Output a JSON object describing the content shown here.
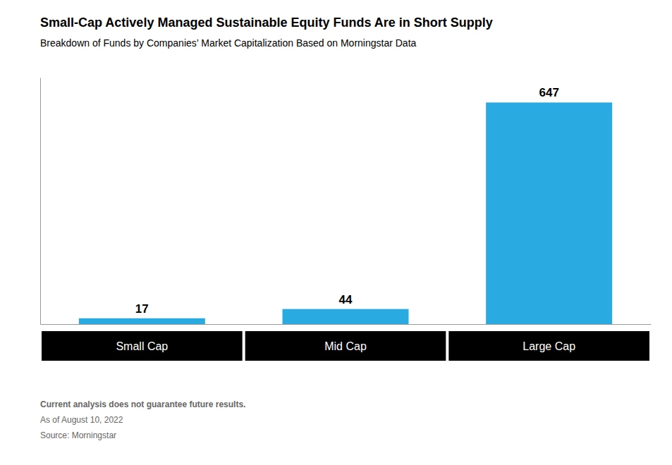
{
  "chart_data": {
    "type": "bar",
    "title": "Small-Cap Actively Managed Sustainable Equity Funds Are in Short Supply",
    "subtitle": "Breakdown of Funds by Companies’ Market Capitalization Based on Morningstar Data",
    "categories": [
      "Small Cap",
      "Mid Cap",
      "Large Cap"
    ],
    "values": [
      17,
      44,
      647
    ],
    "color": "#29ABE2",
    "ylim": [
      0,
      720
    ],
    "yticks": [],
    "grid": false,
    "data_labels": true,
    "tick_labels": "x",
    "annotations": [
      "Current analysis does not guarantee future results.",
      "As of August 10, 2022",
      "Source: Morningstar"
    ]
  }
}
